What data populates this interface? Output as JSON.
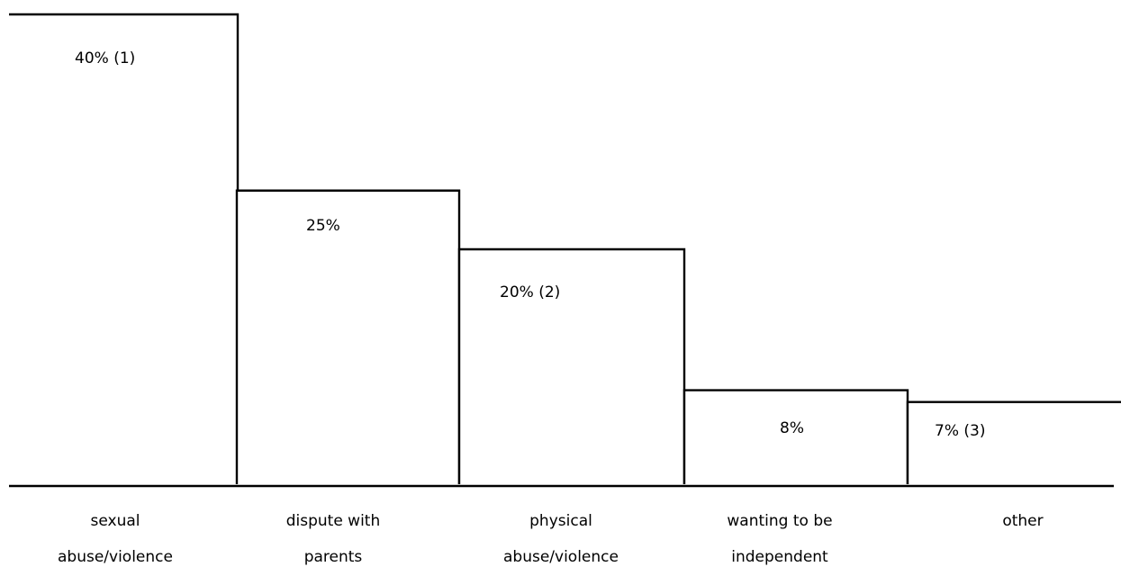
{
  "chart_data": {
    "type": "bar",
    "categories": [
      [
        "sexual",
        "abuse/violence"
      ],
      [
        "dispute with",
        "parents"
      ],
      [
        "physical",
        "abuse/violence"
      ],
      [
        "wanting to be",
        "independent"
      ],
      [
        "other"
      ]
    ],
    "values": [
      40,
      25,
      20,
      8,
      7
    ],
    "data_labels": [
      "40% (1)",
      "25%",
      "20% (2)",
      "8%",
      "7% (3)"
    ],
    "ylim": [
      0,
      40
    ],
    "grid": false,
    "legend": "none"
  }
}
